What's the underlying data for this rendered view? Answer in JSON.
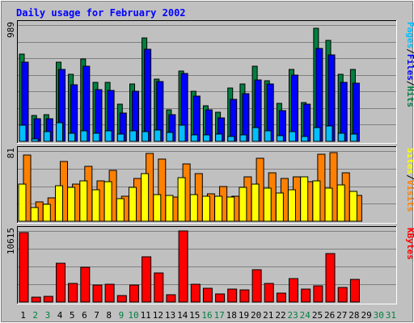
{
  "chart_data": [
    {
      "type": "bar",
      "title": "Daily usage for February 2002",
      "ymax_label": "989",
      "legend": [
        "Pages",
        "Files",
        "Hits"
      ],
      "legend_separator": "/",
      "colors": {
        "Hits": "#008040",
        "Files": "#0000ff",
        "Pages": "#00c0ff"
      },
      "categories": [
        "1",
        "2",
        "3",
        "4",
        "5",
        "6",
        "7",
        "8",
        "9",
        "10",
        "11",
        "12",
        "13",
        "14",
        "15",
        "16",
        "17",
        "18",
        "19",
        "20",
        "21",
        "22",
        "23",
        "24",
        "25",
        "26",
        "27",
        "28",
        "29",
        "30",
        "31"
      ],
      "weekend_days": [
        "2",
        "3",
        "9",
        "10",
        "16",
        "17",
        "23",
        "24",
        "30",
        "31"
      ],
      "ylim": [
        0,
        989
      ],
      "series": [
        {
          "name": "Hits",
          "values": [
            744,
            220,
            226,
            673,
            568,
            702,
            500,
            500,
            313,
            485,
            878,
            528,
            267,
            599,
            426,
            303,
            246,
            452,
            485,
            640,
            513,
            320,
            608,
            331,
            962,
            860,
            567,
            612,
            0,
            0,
            0
          ]
        },
        {
          "name": "Files",
          "values": [
            670,
            189,
            189,
            608,
            478,
            637,
            438,
            430,
            243,
            425,
            784,
            508,
            226,
            575,
            385,
            269,
            196,
            357,
            403,
            522,
            486,
            260,
            560,
            313,
            793,
            737,
            500,
            496,
            0,
            0,
            0
          ]
        },
        {
          "name": "Pages",
          "values": [
            140,
            24,
            80,
            161,
            71,
            90,
            66,
            92,
            65,
            91,
            85,
            95,
            78,
            140,
            53,
            53,
            60,
            39,
            53,
            120,
            88,
            49,
            81,
            40,
            116,
            130,
            66,
            65,
            0,
            0,
            0
          ]
        }
      ]
    },
    {
      "type": "bar",
      "ymax_label": "81",
      "legend": [
        "Sites",
        "Visits"
      ],
      "legend_separator": "/",
      "colors": {
        "Visits": "#ff8000",
        "Sites": "#ffff00"
      },
      "ylim": [
        0,
        81
      ],
      "series": [
        {
          "name": "Visits",
          "values": [
            76,
            22,
            27,
            69,
            43,
            63,
            47,
            59,
            29,
            49,
            78,
            72,
            28,
            66,
            55,
            32,
            40,
            29,
            51,
            73,
            56,
            49,
            51,
            46,
            77,
            79,
            56,
            30,
            0,
            0,
            0
          ]
        },
        {
          "name": "Sites",
          "values": [
            43,
            16,
            20,
            41,
            39,
            47,
            36,
            46,
            26,
            39,
            55,
            31,
            30,
            50,
            31,
            29,
            29,
            28,
            39,
            43,
            38,
            33,
            36,
            51,
            47,
            38,
            42,
            34,
            0,
            0,
            0
          ]
        }
      ]
    },
    {
      "type": "bar",
      "ymax_label": "10615",
      "legend": [
        "KBytes"
      ],
      "colors": {
        "KBytes": "#ff0000"
      },
      "ylim": [
        0,
        10615
      ],
      "series": [
        {
          "name": "KBytes",
          "values": [
            10425,
            720,
            877,
            5830,
            2826,
            5237,
            2528,
            2685,
            1013,
            2535,
            6724,
            4327,
            1118,
            10615,
            2694,
            2088,
            1242,
            1973,
            1761,
            4818,
            2772,
            1346,
            3532,
            1897,
            2370,
            7221,
            2224,
            3431,
            0,
            0,
            0
          ]
        }
      ]
    }
  ]
}
